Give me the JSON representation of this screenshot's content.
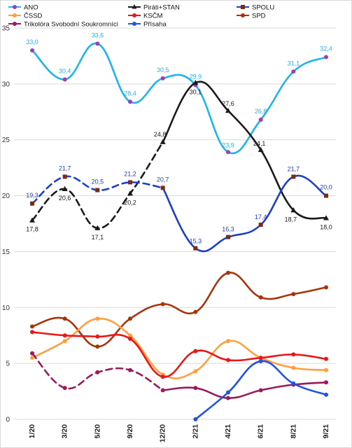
{
  "chart_data": {
    "type": "line",
    "ylim": [
      0,
      35
    ],
    "yticks": [
      0,
      5,
      10,
      15,
      20,
      25,
      30,
      35
    ],
    "grid": true,
    "legend_position": "top-left",
    "categories": [
      "1/20",
      "3/20",
      "5/20",
      "9/20",
      "12/20",
      "2/21",
      "4/21",
      "6/21",
      "8/21",
      "9/21"
    ],
    "series": [
      {
        "name": "ANO",
        "color": "#1fb4ea",
        "marker": "circle",
        "marker_color": "#9b3fb5",
        "values": [
          33.0,
          30.4,
          33.6,
          28.4,
          30.5,
          29.9,
          23.9,
          26.8,
          31.1,
          32.4
        ],
        "labels": [
          "33,0",
          "30,4",
          "33,6",
          "28,4",
          "30,5",
          "29,9",
          "23,9",
          "26,8",
          "31,1",
          "32,4"
        ],
        "label_color": "#1fb4ea"
      },
      {
        "name": "Piráti+STAN",
        "color": "#1a1a1a",
        "marker": "triangle",
        "marker_color": "#1a1a1a",
        "values": [
          17.8,
          20.6,
          17.1,
          20.2,
          24.8,
          30.1,
          27.6,
          24.1,
          18.7,
          18.0
        ],
        "labels": [
          "17,8",
          "20,6",
          "17,1",
          "20,2",
          "24,8",
          "30,1",
          "27,6",
          "24,1",
          "18,7",
          "18,0"
        ],
        "label_color": "#1a1a1a",
        "dashed_until_index": 4
      },
      {
        "name": "SPOLU",
        "color": "#1f3fc9",
        "marker": "square",
        "marker_color": "#7a2b12",
        "values": [
          19.3,
          21.7,
          20.5,
          21.2,
          20.7,
          15.3,
          16.3,
          17.4,
          21.7,
          20.0
        ],
        "labels": [
          "19,3",
          "21,7",
          "20,5",
          "21,2",
          "20,7",
          "15,3",
          "16,3",
          "17,4",
          "21,7",
          "20,0"
        ],
        "label_color": "#1f3fc9",
        "dashed_until_index": 4
      },
      {
        "name": "SPD",
        "color": "#a8340c",
        "marker": "circle",
        "marker_color": "#a8340c",
        "values": [
          8.3,
          9.0,
          6.5,
          9.0,
          10.3,
          9.6,
          13.1,
          10.9,
          11.2,
          11.8
        ]
      },
      {
        "name": "ČSSD",
        "color": "#ffa040",
        "marker": "circle",
        "marker_color": "#ffa040",
        "values": [
          5.5,
          7.0,
          9.0,
          7.5,
          4.0,
          4.3,
          7.0,
          5.5,
          4.6,
          4.4
        ]
      },
      {
        "name": "KSČM",
        "color": "#e81818",
        "marker": "circle",
        "marker_color": "#e81818",
        "values": [
          7.8,
          7.5,
          7.4,
          7.2,
          3.8,
          6.1,
          5.3,
          5.5,
          5.8,
          5.4
        ]
      },
      {
        "name": "Trikolóra Svobodní Soukromníci",
        "color": "#9b1a5c",
        "marker": "circle",
        "marker_color": "#9b1a5c",
        "values": [
          5.9,
          2.8,
          4.2,
          4.4,
          2.6,
          2.8,
          1.9,
          2.6,
          3.1,
          3.3
        ],
        "dashed_until_index": 4
      },
      {
        "name": "Přísaha",
        "color": "#2152e0",
        "marker": "circle",
        "marker_color": "#2152e0",
        "values": [
          null,
          null,
          null,
          null,
          null,
          0.0,
          2.4,
          5.2,
          3.2,
          2.2
        ]
      }
    ]
  }
}
